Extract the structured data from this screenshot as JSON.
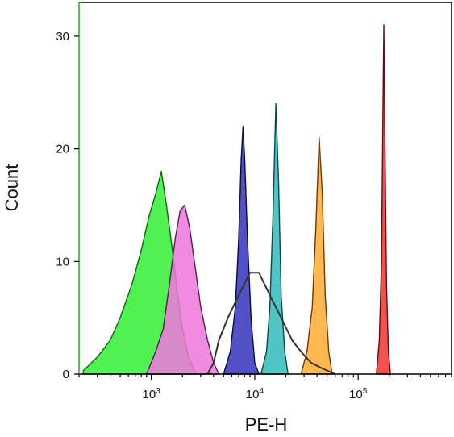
{
  "chart_data": {
    "type": "histogram",
    "title": "",
    "xlabel": "PE-H",
    "ylabel": "Count",
    "x_scale": "log",
    "xlim": [
      200,
      800000
    ],
    "ylim": [
      0,
      33
    ],
    "grid": false,
    "legend": "none",
    "x_ticks": [
      {
        "value": 1000,
        "base": "10",
        "exp": "3"
      },
      {
        "value": 10000,
        "base": "10",
        "exp": "4"
      },
      {
        "value": 100000,
        "base": "10",
        "exp": "5"
      }
    ],
    "y_ticks": [
      {
        "value": 0,
        "label": "0"
      },
      {
        "value": 10,
        "label": "10"
      },
      {
        "value": 20,
        "label": "20"
      },
      {
        "value": 30,
        "label": "30"
      }
    ],
    "series": [
      {
        "color": "#33ee33",
        "edge": "#116611",
        "filled": true,
        "points": [
          [
            220,
            0.3
          ],
          [
            300,
            1.5
          ],
          [
            400,
            3
          ],
          [
            500,
            5
          ],
          [
            650,
            8
          ],
          [
            800,
            11
          ],
          [
            950,
            14
          ],
          [
            1100,
            16
          ],
          [
            1250,
            18
          ],
          [
            1400,
            15
          ],
          [
            1600,
            11
          ],
          [
            1800,
            7
          ],
          [
            2000,
            4
          ],
          [
            2300,
            1.5
          ],
          [
            2700,
            0
          ]
        ]
      },
      {
        "color": "#ee77dd",
        "edge": "#5a1a5a",
        "filled": true,
        "points": [
          [
            900,
            0
          ],
          [
            1100,
            2
          ],
          [
            1300,
            4
          ],
          [
            1500,
            8
          ],
          [
            1700,
            12
          ],
          [
            1900,
            14.5
          ],
          [
            2100,
            15
          ],
          [
            2350,
            13
          ],
          [
            2700,
            9
          ],
          [
            3000,
            6
          ],
          [
            3500,
            3
          ],
          [
            4000,
            1
          ],
          [
            4500,
            0
          ]
        ]
      },
      {
        "color": "#3333bb",
        "edge": "#0a0a4a",
        "filled": true,
        "points": [
          [
            5000,
            0
          ],
          [
            5800,
            2
          ],
          [
            6500,
            6
          ],
          [
            7000,
            12
          ],
          [
            7400,
            19
          ],
          [
            7700,
            22
          ],
          [
            8000,
            19
          ],
          [
            8500,
            12
          ],
          [
            9200,
            5
          ],
          [
            10000,
            1
          ],
          [
            11000,
            0
          ]
        ]
      },
      {
        "color": "#33bbbb",
        "edge": "#0a4a4a",
        "filled": true,
        "points": [
          [
            11500,
            0
          ],
          [
            13000,
            2
          ],
          [
            14000,
            6
          ],
          [
            15000,
            14
          ],
          [
            16000,
            24
          ],
          [
            17000,
            17
          ],
          [
            18000,
            7
          ],
          [
            19500,
            2
          ],
          [
            21000,
            0
          ]
        ]
      },
      {
        "color": "#ffaa33",
        "edge": "#6a3a0a",
        "filled": true,
        "points": [
          [
            28000,
            0
          ],
          [
            32000,
            2
          ],
          [
            36000,
            6
          ],
          [
            39000,
            13
          ],
          [
            42000,
            21
          ],
          [
            45000,
            16
          ],
          [
            48000,
            7
          ],
          [
            52000,
            2
          ],
          [
            56000,
            0
          ]
        ]
      },
      {
        "color": "#ee3333",
        "edge": "#6a0a0a",
        "filled": true,
        "points": [
          [
            150000,
            0
          ],
          [
            160000,
            3
          ],
          [
            168000,
            10
          ],
          [
            174000,
            24
          ],
          [
            177000,
            31
          ],
          [
            181000,
            22
          ],
          [
            188000,
            8
          ],
          [
            196000,
            2
          ],
          [
            205000,
            0
          ]
        ]
      },
      {
        "color": "#333333",
        "edge": "#333333",
        "filled": false,
        "points": [
          [
            3500,
            0
          ],
          [
            4000,
            1
          ],
          [
            4500,
            3
          ],
          [
            5500,
            5
          ],
          [
            7000,
            7
          ],
          [
            9000,
            9
          ],
          [
            11000,
            9
          ],
          [
            14000,
            7
          ],
          [
            18000,
            5
          ],
          [
            23000,
            3
          ],
          [
            28000,
            2
          ],
          [
            35000,
            1
          ],
          [
            45000,
            0.5
          ],
          [
            60000,
            0
          ]
        ]
      }
    ]
  }
}
